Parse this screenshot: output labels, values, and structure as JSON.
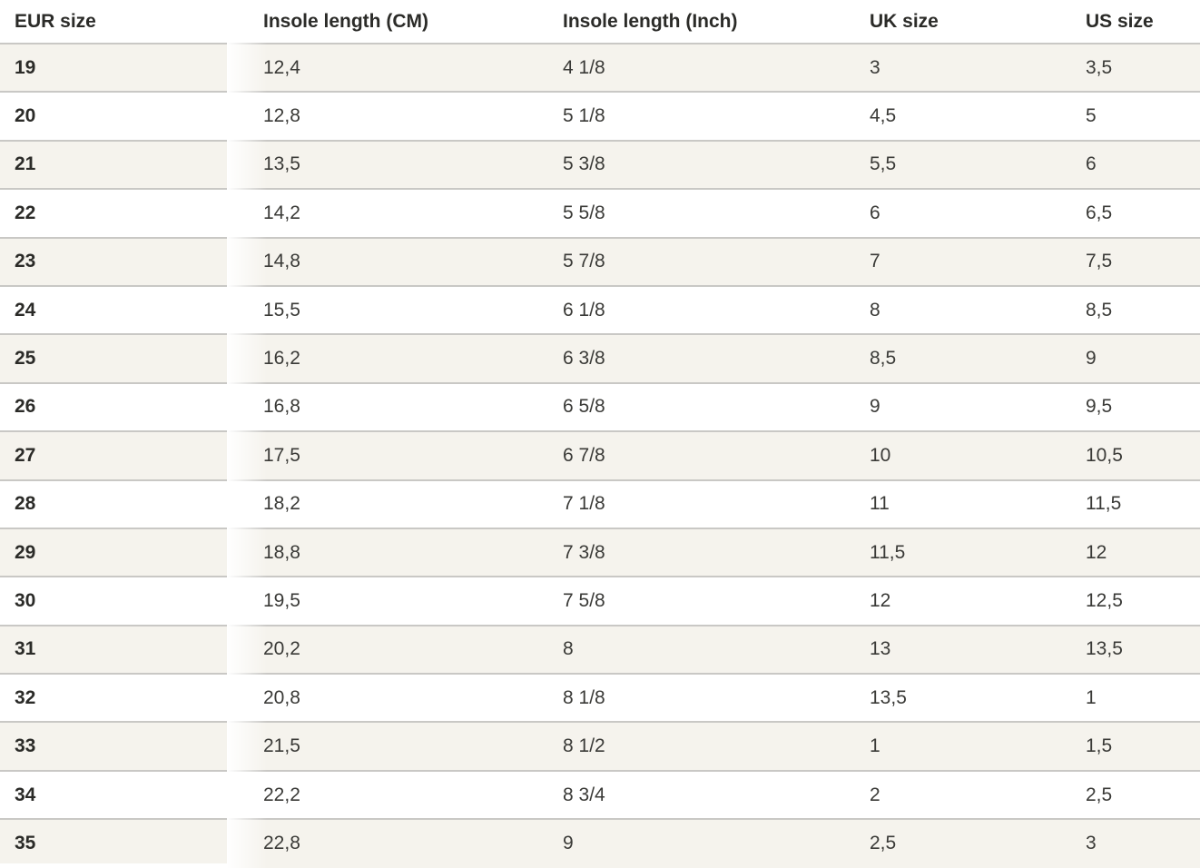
{
  "theme": {
    "background": "#ffffff",
    "stripe_row": "#f5f3ed",
    "divider": "#c9c8c5",
    "body_text": "#3a3a37",
    "heading_text": "#2b2b28"
  },
  "size_table": {
    "columns": [
      {
        "id": "eur-size",
        "label": "EUR size"
      },
      {
        "id": "insole-length-cm",
        "label": "Insole length (CM)"
      },
      {
        "id": "insole-length-inch",
        "label": "Insole length (Inch)"
      },
      {
        "id": "uk-size",
        "label": "UK size"
      },
      {
        "id": "us-size",
        "label": "US size"
      }
    ],
    "rows": [
      [
        "19",
        "12,4",
        "4 1/8",
        "3",
        "3,5"
      ],
      [
        "20",
        "12,8",
        "5 1/8",
        "4,5",
        "5"
      ],
      [
        "21",
        "13,5",
        "5 3/8",
        "5,5",
        "6"
      ],
      [
        "22",
        "14,2",
        "5 5/8",
        "6",
        "6,5"
      ],
      [
        "23",
        "14,8",
        "5 7/8",
        "7",
        "7,5"
      ],
      [
        "24",
        "15,5",
        "6 1/8",
        "8",
        "8,5"
      ],
      [
        "25",
        "16,2",
        "6 3/8",
        "8,5",
        "9"
      ],
      [
        "26",
        "16,8",
        "6 5/8",
        "9",
        "9,5"
      ],
      [
        "27",
        "17,5",
        "6 7/8",
        "10",
        "10,5"
      ],
      [
        "28",
        "18,2",
        "7 1/8",
        "11",
        "11,5"
      ],
      [
        "29",
        "18,8",
        "7 3/8",
        "11,5",
        "12"
      ],
      [
        "30",
        "19,5",
        "7 5/8",
        "12",
        "12,5"
      ],
      [
        "31",
        "20,2",
        "8",
        "13",
        "13,5"
      ],
      [
        "32",
        "20,8",
        "8 1/8",
        "13,5",
        "1"
      ],
      [
        "33",
        "21,5",
        "8 1/2",
        "1",
        "1,5"
      ],
      [
        "34",
        "22,2",
        "8 3/4",
        "2",
        "2,5"
      ],
      [
        "35",
        "22,8",
        "9",
        "2,5",
        "3"
      ]
    ]
  }
}
